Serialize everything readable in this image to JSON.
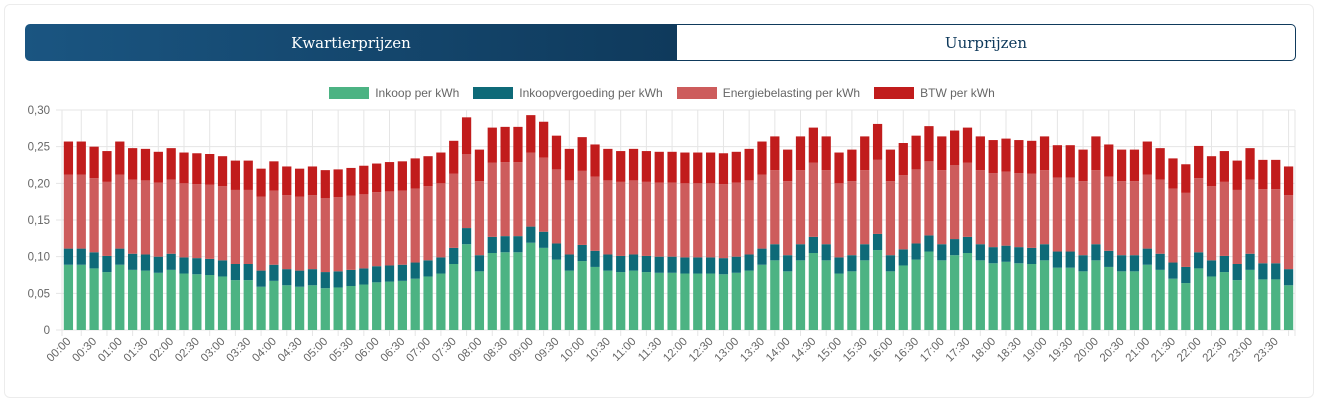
{
  "tabs": [
    {
      "label": "Kwartierprijzen",
      "active": true
    },
    {
      "label": "Uurprijzen",
      "active": false
    }
  ],
  "chart_data": {
    "type": "bar",
    "stacked": true,
    "title": "",
    "xlabel": "",
    "ylabel": "",
    "ylim": [
      0,
      0.3
    ],
    "y_ticks": [
      "0",
      "0,05",
      "0,10",
      "0,15",
      "0,20",
      "0,25",
      "0,30"
    ],
    "y_tick_values": [
      0,
      0.05,
      0.1,
      0.15,
      0.2,
      0.25,
      0.3
    ],
    "bar_count": 96,
    "x_tick_labels": [
      "00:00",
      "00:30",
      "01:00",
      "01:30",
      "02:00",
      "02:30",
      "03:00",
      "03:30",
      "04:00",
      "04:30",
      "05:00",
      "05:30",
      "06:00",
      "06:30",
      "07:00",
      "07:30",
      "08:00",
      "08:30",
      "09:00",
      "09:30",
      "10:00",
      "10:30",
      "11:00",
      "11:30",
      "12:00",
      "12:30",
      "13:00",
      "13:30",
      "14:00",
      "14:30",
      "15:00",
      "15:30",
      "16:00",
      "16:30",
      "17:00",
      "17:30",
      "18:00",
      "18:30",
      "19:00",
      "19:30",
      "20:00",
      "20:30",
      "21:00",
      "21:30",
      "22:00",
      "22:30",
      "23:00",
      "23:30"
    ],
    "legend_position": "top",
    "grid": true,
    "series": [
      {
        "name": "Inkoop per kWh",
        "color": "#4cb383",
        "values": [
          0.089,
          0.089,
          0.084,
          0.079,
          0.089,
          0.082,
          0.081,
          0.078,
          0.082,
          0.077,
          0.076,
          0.075,
          0.073,
          0.068,
          0.068,
          0.059,
          0.067,
          0.061,
          0.059,
          0.061,
          0.057,
          0.058,
          0.06,
          0.062,
          0.065,
          0.066,
          0.067,
          0.07,
          0.073,
          0.077,
          0.09,
          0.117,
          0.08,
          0.105,
          0.106,
          0.106,
          0.119,
          0.112,
          0.096,
          0.081,
          0.094,
          0.086,
          0.081,
          0.079,
          0.081,
          0.079,
          0.078,
          0.078,
          0.077,
          0.077,
          0.077,
          0.076,
          0.078,
          0.081,
          0.089,
          0.095,
          0.08,
          0.095,
          0.105,
          0.095,
          0.077,
          0.08,
          0.095,
          0.109,
          0.08,
          0.088,
          0.096,
          0.107,
          0.095,
          0.102,
          0.105,
          0.095,
          0.091,
          0.093,
          0.091,
          0.09,
          0.095,
          0.085,
          0.085,
          0.08,
          0.095,
          0.086,
          0.08,
          0.08,
          0.089,
          0.082,
          0.07,
          0.064,
          0.084,
          0.073,
          0.079,
          0.068,
          0.082,
          0.069,
          0.069,
          0.061
        ]
      },
      {
        "name": "Inkoopvergoeding per kWh",
        "color": "#0e6a78",
        "values": [
          0.022,
          0.022,
          0.022,
          0.022,
          0.022,
          0.022,
          0.022,
          0.022,
          0.022,
          0.022,
          0.022,
          0.022,
          0.022,
          0.022,
          0.022,
          0.022,
          0.022,
          0.022,
          0.022,
          0.022,
          0.022,
          0.022,
          0.022,
          0.022,
          0.022,
          0.022,
          0.022,
          0.022,
          0.022,
          0.022,
          0.022,
          0.022,
          0.022,
          0.022,
          0.022,
          0.022,
          0.022,
          0.022,
          0.022,
          0.022,
          0.022,
          0.022,
          0.022,
          0.022,
          0.022,
          0.022,
          0.022,
          0.022,
          0.022,
          0.022,
          0.022,
          0.022,
          0.022,
          0.022,
          0.022,
          0.022,
          0.022,
          0.022,
          0.022,
          0.022,
          0.022,
          0.022,
          0.022,
          0.022,
          0.022,
          0.022,
          0.022,
          0.022,
          0.022,
          0.022,
          0.022,
          0.022,
          0.022,
          0.022,
          0.022,
          0.022,
          0.022,
          0.022,
          0.022,
          0.022,
          0.022,
          0.022,
          0.022,
          0.022,
          0.022,
          0.022,
          0.022,
          0.022,
          0.022,
          0.022,
          0.022,
          0.022,
          0.022,
          0.022,
          0.022,
          0.022
        ]
      },
      {
        "name": "Energiebelasting per kWh",
        "color": "#cd5c5c",
        "values": [
          0.101,
          0.101,
          0.101,
          0.101,
          0.101,
          0.101,
          0.101,
          0.101,
          0.101,
          0.101,
          0.101,
          0.101,
          0.101,
          0.101,
          0.101,
          0.101,
          0.101,
          0.101,
          0.101,
          0.101,
          0.101,
          0.101,
          0.101,
          0.101,
          0.101,
          0.101,
          0.101,
          0.101,
          0.101,
          0.101,
          0.101,
          0.101,
          0.101,
          0.101,
          0.101,
          0.101,
          0.101,
          0.101,
          0.101,
          0.101,
          0.101,
          0.101,
          0.101,
          0.101,
          0.101,
          0.101,
          0.101,
          0.101,
          0.101,
          0.101,
          0.101,
          0.101,
          0.101,
          0.101,
          0.101,
          0.101,
          0.101,
          0.101,
          0.101,
          0.101,
          0.101,
          0.101,
          0.101,
          0.101,
          0.101,
          0.101,
          0.101,
          0.101,
          0.101,
          0.101,
          0.101,
          0.101,
          0.101,
          0.101,
          0.101,
          0.101,
          0.101,
          0.101,
          0.101,
          0.101,
          0.101,
          0.101,
          0.101,
          0.101,
          0.101,
          0.101,
          0.101,
          0.101,
          0.101,
          0.101,
          0.101,
          0.101,
          0.101,
          0.101,
          0.101,
          0.101
        ]
      },
      {
        "name": "BTW per kWh",
        "color": "#c11c1c",
        "values": [
          0.045,
          0.045,
          0.043,
          0.042,
          0.045,
          0.043,
          0.043,
          0.042,
          0.043,
          0.042,
          0.042,
          0.042,
          0.041,
          0.04,
          0.04,
          0.038,
          0.04,
          0.039,
          0.038,
          0.039,
          0.038,
          0.038,
          0.038,
          0.039,
          0.039,
          0.04,
          0.04,
          0.041,
          0.041,
          0.042,
          0.045,
          0.05,
          0.043,
          0.048,
          0.048,
          0.048,
          0.051,
          0.049,
          0.046,
          0.043,
          0.046,
          0.044,
          0.043,
          0.042,
          0.043,
          0.042,
          0.042,
          0.042,
          0.042,
          0.042,
          0.042,
          0.042,
          0.042,
          0.043,
          0.045,
          0.046,
          0.043,
          0.046,
          0.048,
          0.046,
          0.042,
          0.043,
          0.046,
          0.049,
          0.043,
          0.044,
          0.046,
          0.048,
          0.046,
          0.047,
          0.048,
          0.046,
          0.045,
          0.045,
          0.045,
          0.045,
          0.046,
          0.044,
          0.044,
          0.043,
          0.046,
          0.044,
          0.043,
          0.043,
          0.045,
          0.043,
          0.041,
          0.039,
          0.044,
          0.041,
          0.042,
          0.04,
          0.043,
          0.04,
          0.04,
          0.039
        ]
      }
    ]
  }
}
